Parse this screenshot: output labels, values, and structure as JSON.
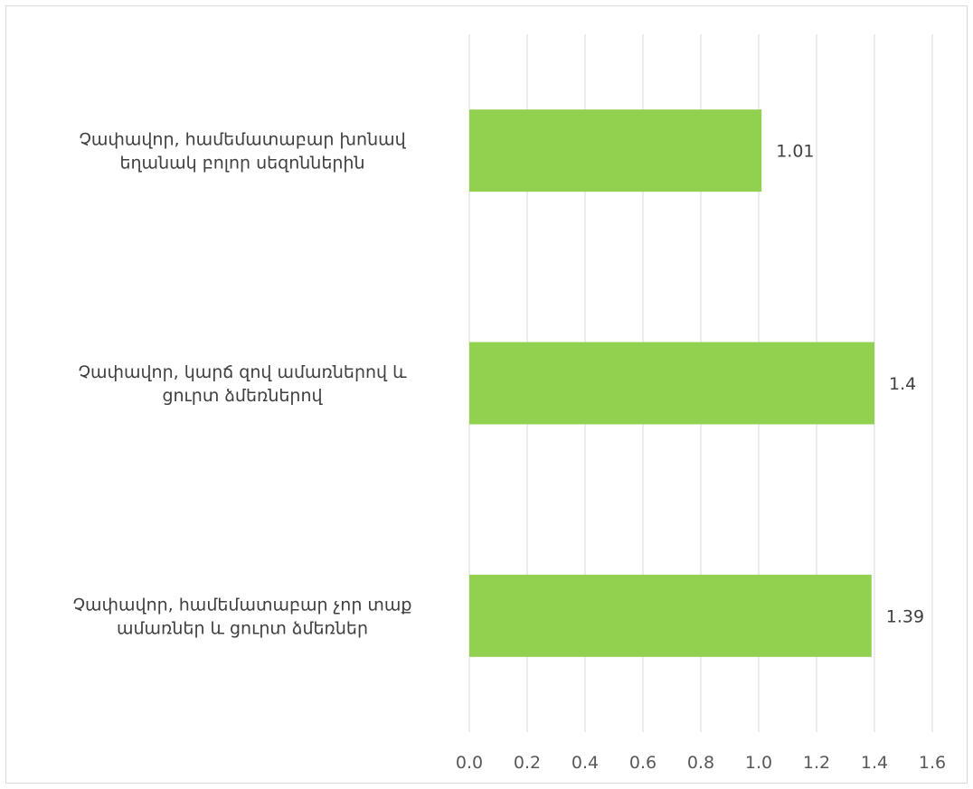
{
  "chart_data": {
    "type": "bar",
    "orientation": "horizontal",
    "categories": [
      [
        "Չափավոր, համեմատաբար խոնավ",
        "եղանակ բոլոր սեզոններին"
      ],
      [
        "Չափավոր, կարճ զով ամառներով և",
        "ցուրտ ձմեռներով"
      ],
      [
        "Չափավոր, համեմատաբար չոր տաք",
        "ամառներ և ցուրտ ձմեռներ"
      ]
    ],
    "values": [
      1.01,
      1.4,
      1.39
    ],
    "value_labels": [
      "1.01",
      "1.4",
      "1.39"
    ],
    "x_ticks": [
      "0.0",
      "0.2",
      "0.4",
      "0.6",
      "0.8",
      "1.0",
      "1.2",
      "1.4",
      "1.6"
    ],
    "xlim": [
      0,
      1.6
    ],
    "title": "",
    "xlabel": "",
    "ylabel": "",
    "grid": true,
    "legend": "none",
    "bar_color": "#92d050",
    "gridline_color": "#d9d9d9"
  }
}
